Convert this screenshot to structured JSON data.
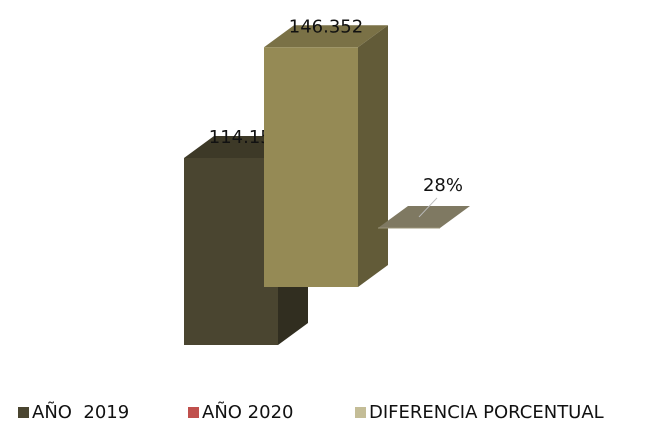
{
  "chart_data": {
    "type": "bar3d",
    "series": [
      {
        "name": "AÑO  2019",
        "color": "#4a4530",
        "bar_color": "#4a4530",
        "values": [
          114156
        ],
        "value_labels": [
          "114.156"
        ]
      },
      {
        "name": "AÑO 2020",
        "color": "#c0504d",
        "bar_color": "#958a55",
        "values": [
          146352
        ],
        "value_labels": [
          "146.352"
        ]
      },
      {
        "name": "DIFERENCIA PORCENTUAL",
        "color": "#c4bd97",
        "bar_color": "#9b9478",
        "values": [
          28
        ],
        "value_labels": [
          "28%"
        ]
      }
    ],
    "legend": "bottom"
  }
}
